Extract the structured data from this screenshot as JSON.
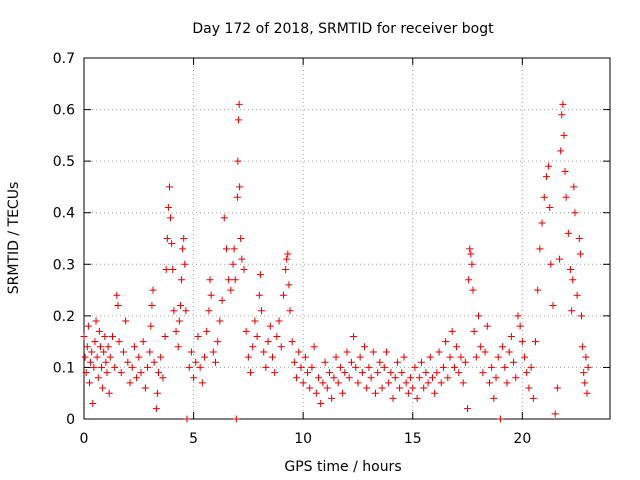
{
  "chart_data": {
    "type": "scatter",
    "title": "Day 172 of 2018, SRMTID for receiver bogt",
    "xlabel": "GPS time / hours",
    "ylabel": "SRMTID / TECUs",
    "xlim": [
      0,
      24
    ],
    "ylim": [
      0,
      0.7
    ],
    "xticks": [
      0,
      5,
      10,
      15,
      20
    ],
    "yticks": [
      0,
      0.1,
      0.2,
      0.3,
      0.4,
      0.5,
      0.6,
      0.7
    ],
    "grid": true,
    "marker": "+",
    "color": "#e00000",
    "series": [
      {
        "name": "bogt",
        "points": [
          [
            0.0,
            0.16
          ],
          [
            0.05,
            0.12
          ],
          [
            0.1,
            0.09
          ],
          [
            0.15,
            0.14
          ],
          [
            0.2,
            0.18
          ],
          [
            0.25,
            0.07
          ],
          [
            0.3,
            0.11
          ],
          [
            0.35,
            0.13
          ],
          [
            0.4,
            0.03
          ],
          [
            0.45,
            0.1
          ],
          [
            0.5,
            0.15
          ],
          [
            0.55,
            0.19
          ],
          [
            0.6,
            0.12
          ],
          [
            0.65,
            0.08
          ],
          [
            0.7,
            0.17
          ],
          [
            0.75,
            0.14
          ],
          [
            0.8,
            0.1
          ],
          [
            0.85,
            0.06
          ],
          [
            0.9,
            0.13
          ],
          [
            0.95,
            0.16
          ],
          [
            1.0,
            0.11
          ],
          [
            1.05,
            0.09
          ],
          [
            1.1,
            0.14
          ],
          [
            1.15,
            0.05
          ],
          [
            1.2,
            0.12
          ],
          [
            1.3,
            0.16
          ],
          [
            1.4,
            0.1
          ],
          [
            1.5,
            0.24
          ],
          [
            1.55,
            0.22
          ],
          [
            1.6,
            0.15
          ],
          [
            1.7,
            0.09
          ],
          [
            1.8,
            0.13
          ],
          [
            1.9,
            0.19
          ],
          [
            2.0,
            0.11
          ],
          [
            2.1,
            0.07
          ],
          [
            2.2,
            0.1
          ],
          [
            2.3,
            0.14
          ],
          [
            2.4,
            0.08
          ],
          [
            2.5,
            0.12
          ],
          [
            2.6,
            0.09
          ],
          [
            2.7,
            0.15
          ],
          [
            2.8,
            0.06
          ],
          [
            2.9,
            0.1
          ],
          [
            3.0,
            0.13
          ],
          [
            3.05,
            0.18
          ],
          [
            3.1,
            0.22
          ],
          [
            3.15,
            0.25
          ],
          [
            3.2,
            0.11
          ],
          [
            3.3,
            0.02
          ],
          [
            3.35,
            0.05
          ],
          [
            3.4,
            0.09
          ],
          [
            3.5,
            0.12
          ],
          [
            3.6,
            0.08
          ],
          [
            3.7,
            0.16
          ],
          [
            3.75,
            0.29
          ],
          [
            3.8,
            0.35
          ],
          [
            3.85,
            0.41
          ],
          [
            3.9,
            0.45
          ],
          [
            3.95,
            0.39
          ],
          [
            4.0,
            0.34
          ],
          [
            4.05,
            0.29
          ],
          [
            4.1,
            0.21
          ],
          [
            4.2,
            0.17
          ],
          [
            4.3,
            0.14
          ],
          [
            4.35,
            0.19
          ],
          [
            4.4,
            0.22
          ],
          [
            4.45,
            0.27
          ],
          [
            4.5,
            0.33
          ],
          [
            4.55,
            0.35
          ],
          [
            4.6,
            0.3
          ],
          [
            4.65,
            0.21
          ],
          [
            4.7,
            0.0
          ],
          [
            4.8,
            0.1
          ],
          [
            4.9,
            0.13
          ],
          [
            5.0,
            0.08
          ],
          [
            5.1,
            0.11
          ],
          [
            5.2,
            0.16
          ],
          [
            5.3,
            0.1
          ],
          [
            5.4,
            0.07
          ],
          [
            5.5,
            0.12
          ],
          [
            5.6,
            0.17
          ],
          [
            5.7,
            0.21
          ],
          [
            5.75,
            0.27
          ],
          [
            5.8,
            0.24
          ],
          [
            5.9,
            0.13
          ],
          [
            6.0,
            0.11
          ],
          [
            6.1,
            0.15
          ],
          [
            6.2,
            0.19
          ],
          [
            6.3,
            0.23
          ],
          [
            6.4,
            0.39
          ],
          [
            6.5,
            0.33
          ],
          [
            6.6,
            0.27
          ],
          [
            6.7,
            0.25
          ],
          [
            6.8,
            0.3
          ],
          [
            6.85,
            0.33
          ],
          [
            6.9,
            0.27
          ],
          [
            6.95,
            0.0
          ],
          [
            7.0,
            0.43
          ],
          [
            7.02,
            0.5
          ],
          [
            7.05,
            0.58
          ],
          [
            7.08,
            0.61
          ],
          [
            7.1,
            0.45
          ],
          [
            7.15,
            0.35
          ],
          [
            7.2,
            0.31
          ],
          [
            7.3,
            0.29
          ],
          [
            7.4,
            0.17
          ],
          [
            7.5,
            0.12
          ],
          [
            7.6,
            0.09
          ],
          [
            7.7,
            0.14
          ],
          [
            7.8,
            0.19
          ],
          [
            7.9,
            0.16
          ],
          [
            8.0,
            0.24
          ],
          [
            8.05,
            0.28
          ],
          [
            8.1,
            0.21
          ],
          [
            8.2,
            0.13
          ],
          [
            8.3,
            0.1
          ],
          [
            8.4,
            0.15
          ],
          [
            8.5,
            0.18
          ],
          [
            8.6,
            0.12
          ],
          [
            8.7,
            0.09
          ],
          [
            8.8,
            0.16
          ],
          [
            8.9,
            0.19
          ],
          [
            9.0,
            0.14
          ],
          [
            9.1,
            0.24
          ],
          [
            9.2,
            0.29
          ],
          [
            9.25,
            0.31
          ],
          [
            9.3,
            0.32
          ],
          [
            9.35,
            0.26
          ],
          [
            9.4,
            0.21
          ],
          [
            9.5,
            0.15
          ],
          [
            9.6,
            0.11
          ],
          [
            9.7,
            0.08
          ],
          [
            9.8,
            0.13
          ],
          [
            9.9,
            0.1
          ],
          [
            10.0,
            0.07
          ],
          [
            10.1,
            0.12
          ],
          [
            10.2,
            0.09
          ],
          [
            10.3,
            0.06
          ],
          [
            10.4,
            0.1
          ],
          [
            10.5,
            0.14
          ],
          [
            10.6,
            0.05
          ],
          [
            10.7,
            0.08
          ],
          [
            10.8,
            0.03
          ],
          [
            10.9,
            0.07
          ],
          [
            11.0,
            0.11
          ],
          [
            11.1,
            0.06
          ],
          [
            11.2,
            0.09
          ],
          [
            11.3,
            0.04
          ],
          [
            11.4,
            0.08
          ],
          [
            11.5,
            0.12
          ],
          [
            11.6,
            0.07
          ],
          [
            11.7,
            0.1
          ],
          [
            11.8,
            0.05
          ],
          [
            11.9,
            0.09
          ],
          [
            12.0,
            0.13
          ],
          [
            12.1,
            0.08
          ],
          [
            12.2,
            0.11
          ],
          [
            12.3,
            0.16
          ],
          [
            12.4,
            0.1
          ],
          [
            12.5,
            0.07
          ],
          [
            12.6,
            0.12
          ],
          [
            12.7,
            0.09
          ],
          [
            12.8,
            0.14
          ],
          [
            12.9,
            0.06
          ],
          [
            13.0,
            0.1
          ],
          [
            13.1,
            0.08
          ],
          [
            13.2,
            0.13
          ],
          [
            13.3,
            0.05
          ],
          [
            13.4,
            0.09
          ],
          [
            13.5,
            0.11
          ],
          [
            13.6,
            0.06
          ],
          [
            13.7,
            0.1
          ],
          [
            13.8,
            0.13
          ],
          [
            13.9,
            0.07
          ],
          [
            14.0,
            0.09
          ],
          [
            14.1,
            0.04
          ],
          [
            14.2,
            0.08
          ],
          [
            14.3,
            0.11
          ],
          [
            14.4,
            0.06
          ],
          [
            14.5,
            0.09
          ],
          [
            14.6,
            0.12
          ],
          [
            14.7,
            0.07
          ],
          [
            14.8,
            0.05
          ],
          [
            14.9,
            0.08
          ],
          [
            15.0,
            0.06
          ],
          [
            15.1,
            0.1
          ],
          [
            15.2,
            0.04
          ],
          [
            15.3,
            0.08
          ],
          [
            15.4,
            0.11
          ],
          [
            15.5,
            0.06
          ],
          [
            15.6,
            0.09
          ],
          [
            15.7,
            0.07
          ],
          [
            15.8,
            0.12
          ],
          [
            15.9,
            0.08
          ],
          [
            16.0,
            0.05
          ],
          [
            16.1,
            0.09
          ],
          [
            16.2,
            0.13
          ],
          [
            16.3,
            0.07
          ],
          [
            16.4,
            0.1
          ],
          [
            16.5,
            0.15
          ],
          [
            16.6,
            0.08
          ],
          [
            16.7,
            0.12
          ],
          [
            16.8,
            0.17
          ],
          [
            16.9,
            0.1
          ],
          [
            17.0,
            0.14
          ],
          [
            17.1,
            0.09
          ],
          [
            17.2,
            0.12
          ],
          [
            17.3,
            0.07
          ],
          [
            17.4,
            0.11
          ],
          [
            17.5,
            0.02
          ],
          [
            17.55,
            0.27
          ],
          [
            17.6,
            0.33
          ],
          [
            17.65,
            0.32
          ],
          [
            17.7,
            0.3
          ],
          [
            17.75,
            0.25
          ],
          [
            17.8,
            0.17
          ],
          [
            17.9,
            0.12
          ],
          [
            18.0,
            0.2
          ],
          [
            18.1,
            0.14
          ],
          [
            18.2,
            0.09
          ],
          [
            18.3,
            0.13
          ],
          [
            18.4,
            0.18
          ],
          [
            18.5,
            0.07
          ],
          [
            18.6,
            0.1
          ],
          [
            18.7,
            0.04
          ],
          [
            18.8,
            0.08
          ],
          [
            18.9,
            0.12
          ],
          [
            19.0,
            0.0
          ],
          [
            19.1,
            0.14
          ],
          [
            19.2,
            0.1
          ],
          [
            19.3,
            0.07
          ],
          [
            19.4,
            0.13
          ],
          [
            19.5,
            0.16
          ],
          [
            19.6,
            0.11
          ],
          [
            19.7,
            0.08
          ],
          [
            19.8,
            0.2
          ],
          [
            19.9,
            0.18
          ],
          [
            20.0,
            0.15
          ],
          [
            20.1,
            0.12
          ],
          [
            20.2,
            0.09
          ],
          [
            20.3,
            0.06
          ],
          [
            20.4,
            0.1
          ],
          [
            20.5,
            0.04
          ],
          [
            20.6,
            0.15
          ],
          [
            20.7,
            0.25
          ],
          [
            20.8,
            0.33
          ],
          [
            20.9,
            0.38
          ],
          [
            21.0,
            0.43
          ],
          [
            21.1,
            0.47
          ],
          [
            21.2,
            0.49
          ],
          [
            21.25,
            0.41
          ],
          [
            21.3,
            0.3
          ],
          [
            21.4,
            0.22
          ],
          [
            21.5,
            0.01
          ],
          [
            21.6,
            0.06
          ],
          [
            21.7,
            0.31
          ],
          [
            21.75,
            0.52
          ],
          [
            21.8,
            0.59
          ],
          [
            21.85,
            0.61
          ],
          [
            21.9,
            0.55
          ],
          [
            21.95,
            0.48
          ],
          [
            22.0,
            0.43
          ],
          [
            22.1,
            0.36
          ],
          [
            22.2,
            0.29
          ],
          [
            22.25,
            0.21
          ],
          [
            22.3,
            0.27
          ],
          [
            22.35,
            0.45
          ],
          [
            22.4,
            0.4
          ],
          [
            22.5,
            0.24
          ],
          [
            22.6,
            0.35
          ],
          [
            22.65,
            0.32
          ],
          [
            22.7,
            0.2
          ],
          [
            22.75,
            0.14
          ],
          [
            22.8,
            0.09
          ],
          [
            22.85,
            0.07
          ],
          [
            22.9,
            0.12
          ],
          [
            22.95,
            0.05
          ],
          [
            23.0,
            0.1
          ]
        ]
      }
    ]
  }
}
